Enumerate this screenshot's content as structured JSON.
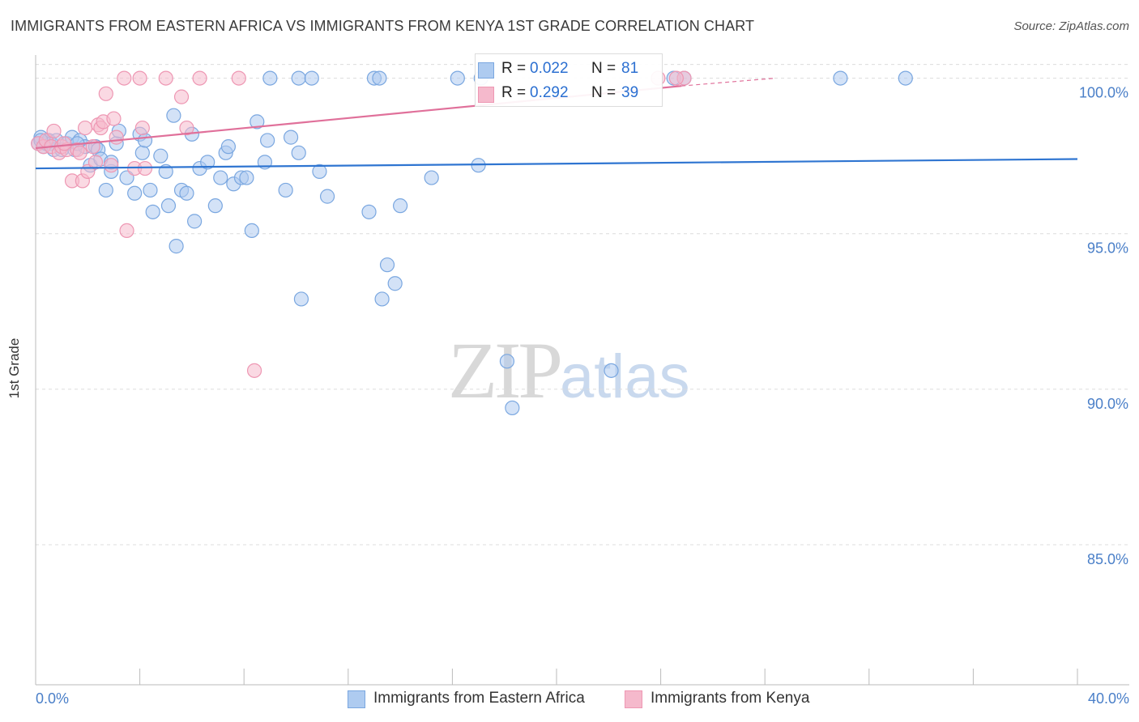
{
  "title": "IMMIGRANTS FROM EASTERN AFRICA VS IMMIGRANTS FROM KENYA 1ST GRADE CORRELATION CHART",
  "source": "Source: ZipAtlas.com",
  "watermark": {
    "zip": "ZIP",
    "atlas": "atlas"
  },
  "legend": {
    "rows": [
      {
        "r_label": "R = ",
        "r_value": "0.022",
        "n_label": "N = ",
        "n_value": "81"
      },
      {
        "r_label": "R = ",
        "r_value": "0.292",
        "n_label": "N = ",
        "n_value": "39"
      }
    ]
  },
  "colors": {
    "blue_fill": "#aecbf0",
    "blue_stroke": "#7aa7e0",
    "blue_line": "#2f75d1",
    "pink_fill": "#f5b9cc",
    "pink_stroke": "#ee97b3",
    "pink_line": "#e0709a",
    "grid": "#dcdcdc",
    "axis_label": "#4a7fc8"
  },
  "chart_data": {
    "type": "scatter",
    "title": "IMMIGRANTS FROM EASTERN AFRICA VS IMMIGRANTS FROM KENYA 1ST GRADE CORRELATION CHART",
    "xlabel": "",
    "ylabel": "1st Grade",
    "xlim": [
      0,
      40
    ],
    "ylim": [
      80.5,
      100.9
    ],
    "x_tick_labels": [
      "0.0%",
      "40.0%"
    ],
    "y_ticks": [
      {
        "value": 100,
        "label": "100.0%"
      },
      {
        "value": 95,
        "label": "95.0%"
      },
      {
        "value": 90,
        "label": "90.0%"
      },
      {
        "value": 85,
        "label": "85.0%"
      }
    ],
    "legend_position": "top-center",
    "series": [
      {
        "name": "Immigrants from Eastern Africa",
        "color": "blue",
        "r": 0.022,
        "n": 81,
        "trend": {
          "x": [
            0.0,
            40.0
          ],
          "y": [
            97.1,
            97.4
          ]
        },
        "points": [
          [
            0.1,
            97.9
          ],
          [
            0.2,
            98.1
          ],
          [
            0.3,
            97.8
          ],
          [
            0.4,
            97.9
          ],
          [
            0.5,
            98.0
          ],
          [
            0.6,
            97.9
          ],
          [
            0.7,
            97.7
          ],
          [
            0.8,
            98.0
          ],
          [
            1.0,
            97.7
          ],
          [
            1.2,
            97.9
          ],
          [
            1.4,
            98.1
          ],
          [
            1.5,
            97.7
          ],
          [
            1.7,
            98.0
          ],
          [
            1.9,
            97.8
          ],
          [
            2.1,
            97.2
          ],
          [
            2.3,
            97.8
          ],
          [
            2.4,
            97.7
          ],
          [
            2.5,
            97.4
          ],
          [
            2.7,
            96.4
          ],
          [
            2.9,
            97.0
          ],
          [
            3.1,
            97.9
          ],
          [
            3.2,
            98.3
          ],
          [
            3.5,
            96.8
          ],
          [
            3.8,
            96.3
          ],
          [
            4.0,
            98.2
          ],
          [
            4.1,
            97.6
          ],
          [
            4.2,
            98.0
          ],
          [
            4.4,
            96.4
          ],
          [
            4.5,
            95.7
          ],
          [
            4.8,
            97.5
          ],
          [
            5.0,
            97.0
          ],
          [
            5.1,
            95.9
          ],
          [
            5.3,
            98.8
          ],
          [
            5.4,
            94.6
          ],
          [
            5.6,
            96.4
          ],
          [
            5.8,
            96.3
          ],
          [
            6.0,
            98.2
          ],
          [
            6.1,
            95.4
          ],
          [
            6.3,
            97.1
          ],
          [
            6.6,
            97.3
          ],
          [
            6.9,
            95.9
          ],
          [
            7.1,
            96.8
          ],
          [
            7.3,
            97.6
          ],
          [
            7.6,
            96.6
          ],
          [
            7.9,
            96.8
          ],
          [
            8.1,
            96.8
          ],
          [
            8.3,
            95.1
          ],
          [
            8.5,
            98.6
          ],
          [
            8.8,
            97.3
          ],
          [
            8.9,
            98.0
          ],
          [
            9.6,
            96.4
          ],
          [
            9.8,
            98.1
          ],
          [
            10.1,
            97.6
          ],
          [
            10.2,
            92.9
          ],
          [
            10.9,
            97.0
          ],
          [
            11.2,
            96.2
          ],
          [
            12.8,
            95.7
          ],
          [
            13.3,
            92.9
          ],
          [
            13.5,
            94.0
          ],
          [
            13.8,
            93.4
          ],
          [
            14.0,
            95.9
          ],
          [
            15.2,
            96.8
          ],
          [
            17.0,
            97.2
          ],
          [
            18.1,
            90.9
          ],
          [
            18.3,
            89.4
          ],
          [
            22.1,
            90.6
          ],
          [
            9.0,
            100.0
          ],
          [
            10.1,
            100.0
          ],
          [
            10.6,
            100.0
          ],
          [
            13.0,
            100.0
          ],
          [
            13.2,
            100.0
          ],
          [
            16.2,
            100.0
          ],
          [
            17.1,
            100.0
          ],
          [
            24.5,
            100.0
          ],
          [
            24.9,
            100.0
          ],
          [
            30.9,
            100.0
          ],
          [
            33.4,
            100.0
          ],
          [
            0.2,
            98.0
          ],
          [
            1.6,
            97.9
          ],
          [
            7.4,
            97.8
          ],
          [
            2.9,
            97.3
          ]
        ]
      },
      {
        "name": "Immigrants from Kenya",
        "color": "pink",
        "r": 0.292,
        "n": 39,
        "trend": {
          "x": [
            0.0,
            24.8
          ],
          "y": [
            97.75,
            99.75
          ]
        },
        "trend_dashed": {
          "x": [
            24.8,
            28.4
          ],
          "y": [
            99.75,
            100.0
          ]
        },
        "points": [
          [
            0.1,
            97.9
          ],
          [
            0.3,
            97.8
          ],
          [
            0.4,
            98.0
          ],
          [
            0.6,
            97.8
          ],
          [
            0.7,
            98.3
          ],
          [
            0.9,
            97.6
          ],
          [
            1.0,
            97.8
          ],
          [
            1.2,
            97.7
          ],
          [
            1.4,
            96.7
          ],
          [
            1.6,
            97.7
          ],
          [
            1.7,
            97.6
          ],
          [
            1.8,
            96.7
          ],
          [
            1.9,
            98.4
          ],
          [
            2.0,
            97.0
          ],
          [
            2.2,
            97.8
          ],
          [
            2.3,
            97.3
          ],
          [
            2.4,
            98.5
          ],
          [
            2.5,
            98.4
          ],
          [
            2.6,
            98.6
          ],
          [
            2.7,
            99.5
          ],
          [
            2.9,
            97.2
          ],
          [
            3.0,
            98.7
          ],
          [
            3.1,
            98.1
          ],
          [
            3.5,
            95.1
          ],
          [
            3.8,
            97.1
          ],
          [
            4.1,
            98.4
          ],
          [
            4.2,
            97.1
          ],
          [
            5.6,
            99.4
          ],
          [
            5.8,
            98.4
          ],
          [
            8.4,
            90.6
          ],
          [
            3.4,
            100.0
          ],
          [
            4.0,
            100.0
          ],
          [
            5.0,
            100.0
          ],
          [
            6.3,
            100.0
          ],
          [
            7.8,
            100.0
          ],
          [
            23.9,
            100.0
          ],
          [
            24.9,
            100.0
          ],
          [
            24.6,
            100.0
          ],
          [
            1.1,
            97.9
          ]
        ]
      }
    ]
  },
  "bottom_legend": [
    {
      "label": "Immigrants from Eastern Africa"
    },
    {
      "label": "Immigrants from Kenya"
    }
  ]
}
